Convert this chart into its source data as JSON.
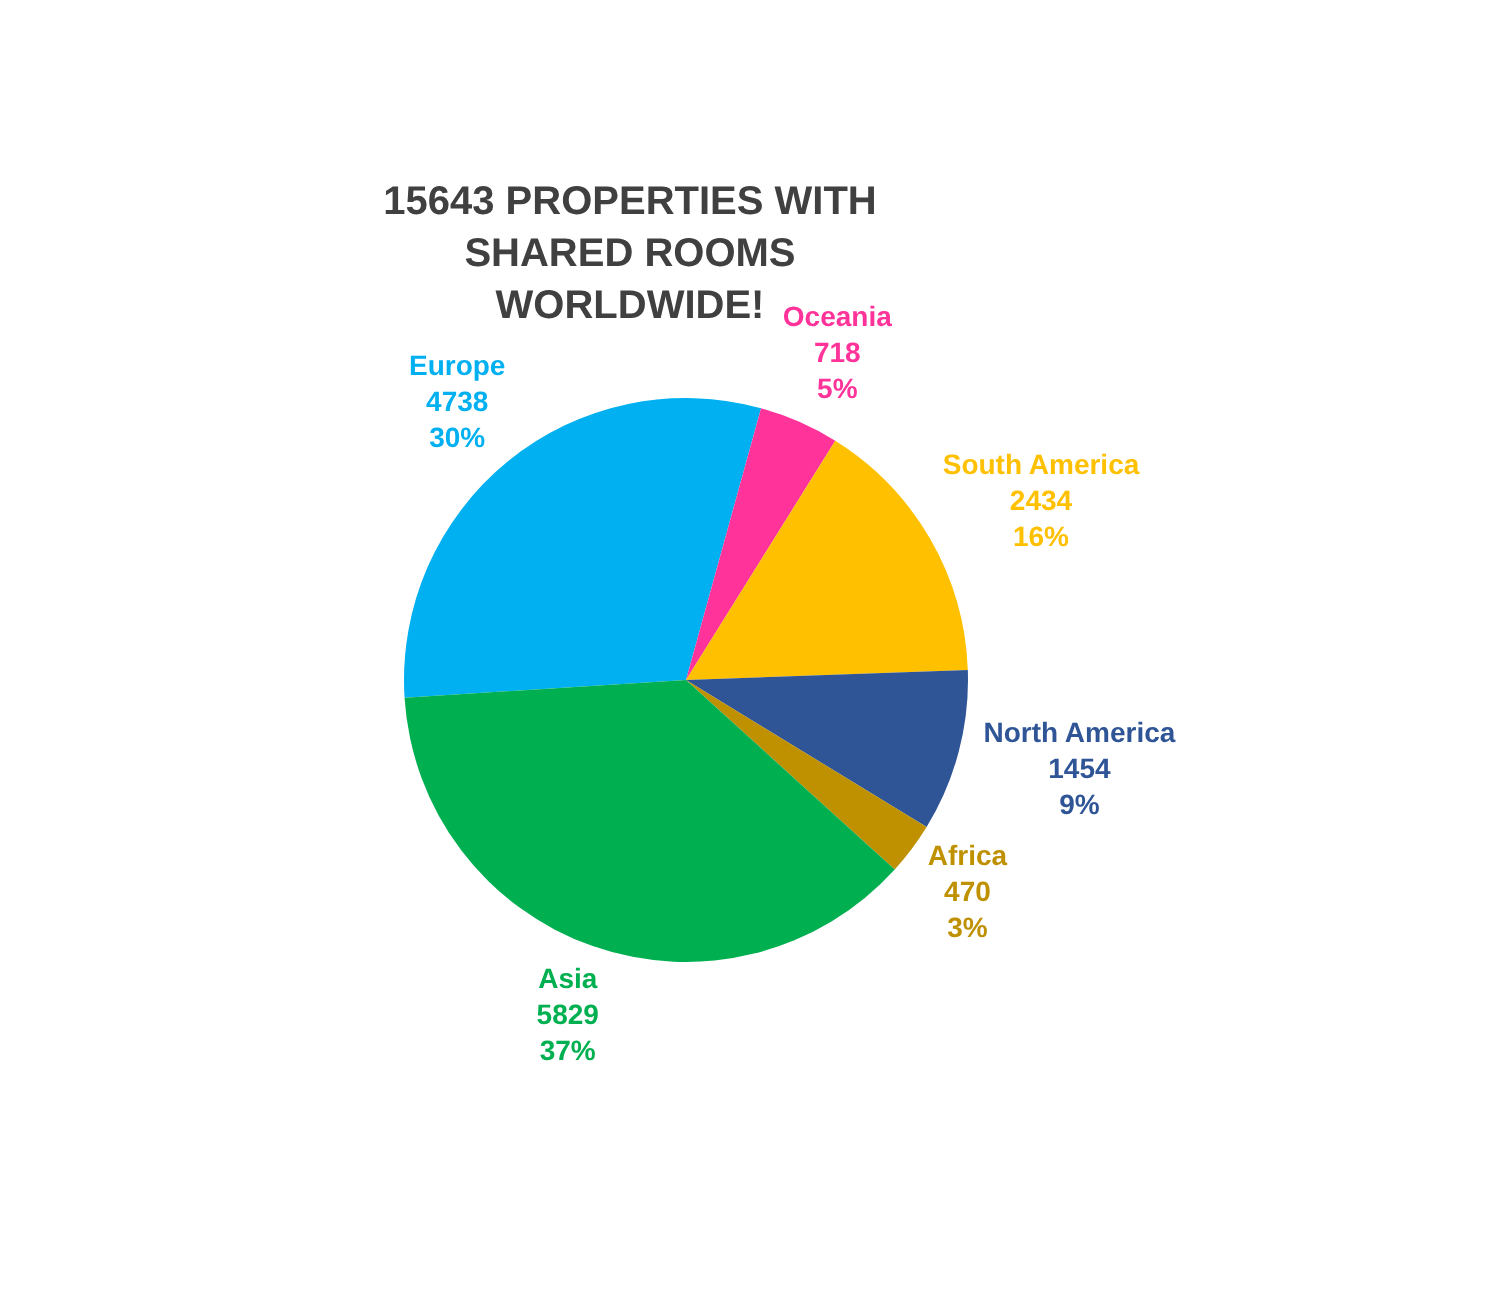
{
  "chart_data": {
    "type": "pie",
    "title": "15643 PROPERTIES WITH SHARED ROOMS WORLDWIDE!",
    "categories": [
      "Europe",
      "Oceania",
      "South America",
      "North America",
      "Africa",
      "Asia"
    ],
    "values": [
      4738,
      718,
      2434,
      1454,
      470,
      5829
    ],
    "value_labels": [
      "4738\n30%",
      "718\n5%",
      "2434\n16%",
      "1454\n9%",
      "470\n3%",
      "5829\n37%"
    ],
    "colors": [
      "#00b0f0",
      "#ff3399",
      "#ffc000",
      "#2f5597",
      "#bf9000",
      "#00b050"
    ],
    "legend": false
  }
}
